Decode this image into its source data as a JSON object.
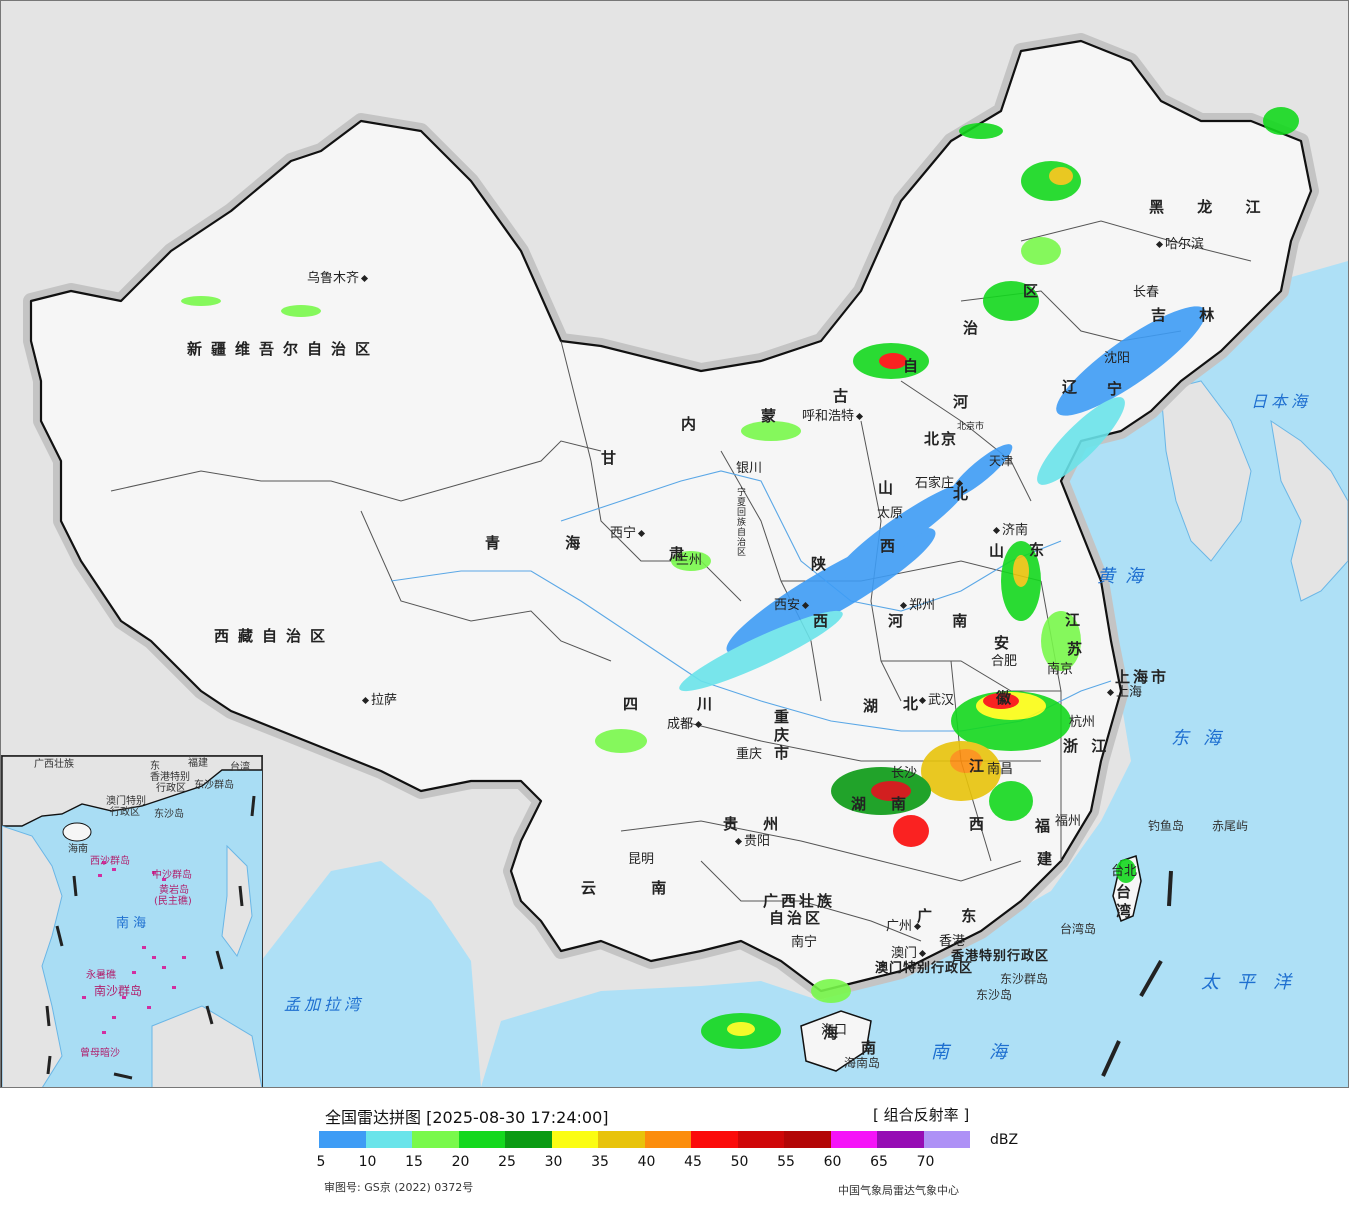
{
  "map": {
    "provinces": [
      {
        "id": "xinjiang",
        "text": "新疆维吾尔自治区"
      },
      {
        "id": "xizang",
        "text": "西藏自治区"
      },
      {
        "id": "qinghai",
        "text": "青 海"
      },
      {
        "id": "neimenggu-1",
        "text": "内"
      },
      {
        "id": "neimenggu-2",
        "text": "蒙"
      },
      {
        "id": "neimenggu-3",
        "text": "古"
      },
      {
        "id": "neimenggu-4",
        "text": "自"
      },
      {
        "id": "neimenggu-5",
        "text": "治"
      },
      {
        "id": "neimenggu-6",
        "text": "区"
      },
      {
        "id": "gansu-1",
        "text": "甘"
      },
      {
        "id": "gansu-2",
        "text": "肃"
      },
      {
        "id": "ningxia",
        "text": "宁夏回族自治区"
      },
      {
        "id": "shaanxi-1",
        "text": "陕"
      },
      {
        "id": "shaanxi-2",
        "text": "西"
      },
      {
        "id": "shanxi-1",
        "text": "山"
      },
      {
        "id": "shanxi-2",
        "text": "西"
      },
      {
        "id": "hebei-1",
        "text": "河"
      },
      {
        "id": "hebei-2",
        "text": "北"
      },
      {
        "id": "henan",
        "text": "河 南"
      },
      {
        "id": "shandong-1",
        "text": "山"
      },
      {
        "id": "shandong-2",
        "text": "东"
      },
      {
        "id": "sichuan-1",
        "text": "四"
      },
      {
        "id": "sichuan-2",
        "text": "川"
      },
      {
        "id": "chongqing",
        "text": "重庆市"
      },
      {
        "id": "hubei-1",
        "text": "湖"
      },
      {
        "id": "hubei-2",
        "text": "北"
      },
      {
        "id": "hunan-1",
        "text": "湖"
      },
      {
        "id": "hunan-2",
        "text": "南"
      },
      {
        "id": "guizhou",
        "text": "贵 州"
      },
      {
        "id": "yunnan",
        "text": "云 南"
      },
      {
        "id": "guangxi-1",
        "text": "广西壮族"
      },
      {
        "id": "guangxi-2",
        "text": "自治区"
      },
      {
        "id": "guangdong",
        "text": "广 东"
      },
      {
        "id": "jiangxi-1",
        "text": "江"
      },
      {
        "id": "jiangxi-2",
        "text": "西"
      },
      {
        "id": "fujian-1",
        "text": "福"
      },
      {
        "id": "fujian-2",
        "text": "建"
      },
      {
        "id": "zhejiang",
        "text": "浙 江"
      },
      {
        "id": "anhui-1",
        "text": "安"
      },
      {
        "id": "anhui-2",
        "text": "徽"
      },
      {
        "id": "jiangsu-1",
        "text": "江"
      },
      {
        "id": "jiangsu-2",
        "text": "苏"
      },
      {
        "id": "shanghai",
        "text": "上海市"
      },
      {
        "id": "heilongjiang",
        "text": "黑 龙 江"
      },
      {
        "id": "jilin",
        "text": "吉 林"
      },
      {
        "id": "liaoning-1",
        "text": "辽"
      },
      {
        "id": "liaoning-2",
        "text": "宁"
      },
      {
        "id": "beijing",
        "text": "北京"
      },
      {
        "id": "tianjin",
        "text": "天津"
      },
      {
        "id": "hainan-1",
        "text": "海"
      },
      {
        "id": "hainan-2",
        "text": "南"
      },
      {
        "id": "taiwan-1",
        "text": "台"
      },
      {
        "id": "taiwan-2",
        "text": "湾"
      },
      {
        "id": "xianggang",
        "text": "香港特别行政区"
      },
      {
        "id": "aomen",
        "text": "澳门特别行政区"
      }
    ],
    "cities": [
      {
        "id": "urumqi",
        "text": "乌鲁木齐"
      },
      {
        "id": "lhasa",
        "text": "拉萨"
      },
      {
        "id": "xining",
        "text": "西宁"
      },
      {
        "id": "lanzhou",
        "text": "兰州"
      },
      {
        "id": "yinchuan",
        "text": "银川"
      },
      {
        "id": "huhehaote",
        "text": "呼和浩特"
      },
      {
        "id": "beijing-city",
        "text": "北京市"
      },
      {
        "id": "shijiazhuang",
        "text": "石家庄"
      },
      {
        "id": "taiyuan",
        "text": "太原"
      },
      {
        "id": "jinan",
        "text": "济南"
      },
      {
        "id": "zhengzhou",
        "text": "郑州"
      },
      {
        "id": "xian",
        "text": "西安"
      },
      {
        "id": "chengdu",
        "text": "成都"
      },
      {
        "id": "chongqing-city",
        "text": "重庆"
      },
      {
        "id": "wuhan",
        "text": "武汉"
      },
      {
        "id": "hefei",
        "text": "合肥"
      },
      {
        "id": "nanjing",
        "text": "南京"
      },
      {
        "id": "shanghai-city",
        "text": "上海"
      },
      {
        "id": "hangzhou",
        "text": "杭州"
      },
      {
        "id": "nanchang",
        "text": "南昌"
      },
      {
        "id": "changsha",
        "text": "长沙"
      },
      {
        "id": "guiyang",
        "text": "贵阳"
      },
      {
        "id": "kunming",
        "text": "昆明"
      },
      {
        "id": "nanning",
        "text": "南宁"
      },
      {
        "id": "guangzhou",
        "text": "广州"
      },
      {
        "id": "aomen-city",
        "text": "澳门"
      },
      {
        "id": "hongkong-city",
        "text": "香港"
      },
      {
        "id": "fuzhou",
        "text": "福州"
      },
      {
        "id": "taibei",
        "text": "台北"
      },
      {
        "id": "haikou",
        "text": "海口"
      },
      {
        "id": "shenyang",
        "text": "沈阳"
      },
      {
        "id": "changchun",
        "text": "长春"
      },
      {
        "id": "haerbin",
        "text": "哈尔滨"
      }
    ],
    "seas": [
      {
        "id": "riben-hai",
        "text": "日本海"
      },
      {
        "id": "huang-hai",
        "text": "黄海"
      },
      {
        "id": "dong-hai",
        "text": "东海"
      },
      {
        "id": "taiping-yang",
        "text": "太平洋"
      },
      {
        "id": "nan-hai",
        "text": "南海"
      },
      {
        "id": "mengjiala-wan",
        "text": "孟加拉湾"
      }
    ],
    "islands": [
      {
        "id": "diaoyu",
        "text": "钓鱼岛"
      },
      {
        "id": "chiwei",
        "text": "赤尾屿"
      },
      {
        "id": "taiwan-island",
        "text": "台湾岛"
      },
      {
        "id": "dongsha-qundao",
        "text": "东沙群岛"
      },
      {
        "id": "dongsha-dao",
        "text": "东沙岛"
      },
      {
        "id": "hainan-island",
        "text": "海南岛"
      }
    ]
  },
  "inset": {
    "labels": [
      {
        "id": "i-guangxi",
        "text": "广西壮族"
      },
      {
        "id": "i-guangdong",
        "text": "东"
      },
      {
        "id": "i-fujian",
        "text": "福建"
      },
      {
        "id": "i-taiwan",
        "text": "台湾"
      },
      {
        "id": "i-hk",
        "text": "香港特别"
      },
      {
        "id": "i-hk2",
        "text": "行政区"
      },
      {
        "id": "i-dongsha",
        "text": "东沙群岛"
      },
      {
        "id": "i-macau",
        "text": "澳门特别"
      },
      {
        "id": "i-macau2",
        "text": "行政区"
      },
      {
        "id": "i-dongshadao",
        "text": "东沙岛"
      },
      {
        "id": "i-hainan",
        "text": "海南"
      },
      {
        "id": "i-xisha",
        "text": "西沙群岛"
      },
      {
        "id": "i-zhongsha",
        "text": "中沙群岛"
      },
      {
        "id": "i-huangyan",
        "text": "黄岩岛"
      },
      {
        "id": "i-minzhu",
        "text": "(民主礁)"
      },
      {
        "id": "i-nanhai",
        "text": "南 海"
      },
      {
        "id": "i-yongshu",
        "text": "永暑礁"
      },
      {
        "id": "i-nansha",
        "text": "南沙群岛"
      },
      {
        "id": "i-zengmu",
        "text": "曾母暗沙"
      }
    ]
  },
  "legend": {
    "title": "全国雷达拼图 [2025-08-30 17:24:00]",
    "product": "[ 组合反射率 ]",
    "unit": "dBZ",
    "colors": [
      "#3e9cf5",
      "#6ae4ea",
      "#79f94b",
      "#14d81e",
      "#0a9a13",
      "#fbfd13",
      "#e8c30b",
      "#fc8d0c",
      "#fb0b0a",
      "#cf0708",
      "#b30606",
      "#f513f8",
      "#960cb4",
      "#ae91f6"
    ],
    "ticks": [
      "5",
      "10",
      "15",
      "20",
      "25",
      "30",
      "35",
      "40",
      "45",
      "50",
      "55",
      "60",
      "65",
      "70"
    ],
    "approval": "审图号: GS京 (2022) 0372号",
    "credit": "中国气象局雷达气象中心"
  }
}
